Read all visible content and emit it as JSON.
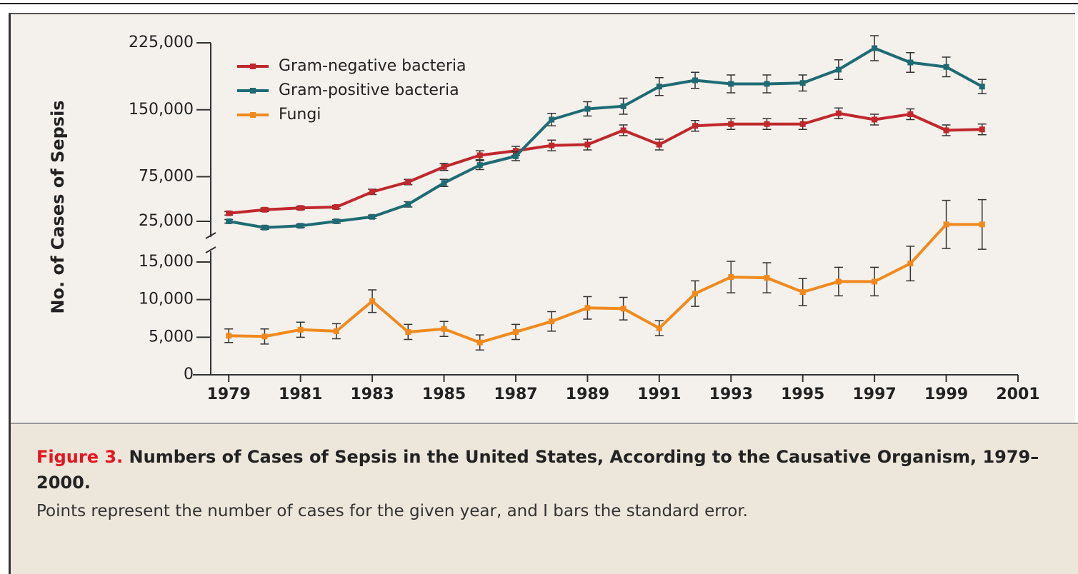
{
  "chart_data": {
    "type": "line",
    "y_label": "No. of Cases of Sepsis",
    "x": [
      1979,
      1980,
      1981,
      1982,
      1983,
      1984,
      1985,
      1986,
      1987,
      1988,
      1989,
      1990,
      1991,
      1992,
      1993,
      1994,
      1995,
      1996,
      1997,
      1998,
      1999,
      2000
    ],
    "xlim": [
      1978,
      2001
    ],
    "xticks": [
      1979,
      1981,
      1983,
      1985,
      1987,
      1989,
      1991,
      1993,
      1995,
      1997,
      1999,
      2001
    ],
    "ylim": [
      0,
      15000
    ],
    "yticks": [
      0,
      {
        "value": 5000,
        "label": "5,000"
      },
      {
        "value": 10000,
        "label": "10,000"
      },
      {
        "value": 15000,
        "label": "15,000"
      }
    ],
    "y2lim": [
      25000,
      225000
    ],
    "y2ticks": [
      {
        "value": 25000,
        "label": "25,000"
      },
      {
        "value": 75000,
        "label": "75,000"
      },
      {
        "value": 150000,
        "label": "150,000"
      },
      {
        "value": 225000,
        "label": "225,000"
      }
    ],
    "axis_break": true,
    "legend": "upper left",
    "series": [
      {
        "name": "Gram-negative bacteria",
        "color": "#c0282d",
        "axis": "y2",
        "values": [
          34000,
          38000,
          40000,
          41000,
          58000,
          69000,
          86000,
          99000,
          104000,
          110000,
          111000,
          127000,
          111000,
          132000,
          134000,
          134000,
          134000,
          146000,
          139000,
          145000,
          127000,
          128000
        ],
        "errors": [
          2000,
          2000,
          2000,
          2000,
          3000,
          3000,
          4000,
          5000,
          5000,
          6000,
          6000,
          6000,
          6000,
          6000,
          6000,
          6000,
          6000,
          6000,
          6000,
          6000,
          6000,
          6000
        ]
      },
      {
        "name": "Gram-positive bacteria",
        "color": "#1f6b74",
        "axis": "y2",
        "values": [
          25000,
          18000,
          20000,
          25000,
          30000,
          44000,
          68000,
          88000,
          98000,
          139000,
          151000,
          154000,
          176000,
          183000,
          179000,
          179000,
          180000,
          195000,
          219000,
          203000,
          198000,
          176000
        ],
        "errors": [
          2000,
          2000,
          2000,
          2000,
          2000,
          3000,
          4000,
          5000,
          5000,
          7000,
          8000,
          9000,
          10000,
          9000,
          10000,
          10000,
          9000,
          11000,
          14000,
          11000,
          11000,
          8000
        ]
      },
      {
        "name": "Fungi",
        "color": "#f08a1e",
        "values": [
          5200,
          5100,
          6000,
          5800,
          9800,
          5700,
          6100,
          4300,
          5700,
          7100,
          8900,
          8800,
          6200,
          10800,
          13000,
          12900,
          11000,
          12400,
          12400,
          14800,
          20000,
          20000
        ],
        "errors": [
          900,
          1000,
          1000,
          1000,
          1500,
          1000,
          1000,
          1000,
          1000,
          1300,
          1500,
          1500,
          1000,
          1700,
          2100,
          2000,
          1800,
          1900,
          1900,
          2300,
          3200,
          3300
        ]
      }
    ]
  },
  "caption": {
    "label": "Figure 3.",
    "title": "Numbers of Cases of Sepsis in the United States, According to the Causative Organism, 1979–2000.",
    "text": "Points represent the number of cases for the given year, and I bars the standard error."
  }
}
